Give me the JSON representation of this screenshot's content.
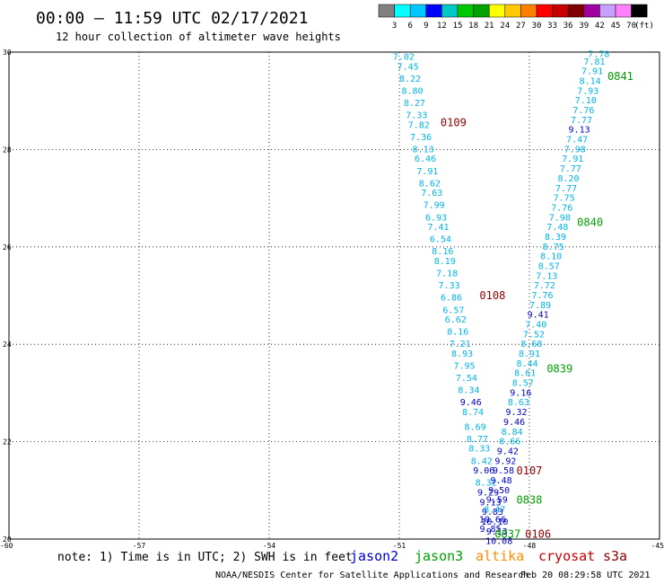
{
  "header": {
    "title": "00:00 – 11:59 UTC 02/17/2021",
    "subtitle": "12 hour collection of altimeter wave heights"
  },
  "legend_scale": {
    "labels": [
      "3",
      "6",
      "9",
      "12",
      "15",
      "18",
      "21",
      "24",
      "27",
      "30",
      "33",
      "36",
      "39",
      "42",
      "45",
      "70"
    ],
    "unit": "(ft)",
    "colors": [
      "#808080",
      "#00ffff",
      "#00c8ff",
      "#0000ff",
      "#00c8c8",
      "#00c800",
      "#00a000",
      "#ffff00",
      "#ffc800",
      "#ff8000",
      "#ff0000",
      "#c80000",
      "#800000",
      "#a000a0",
      "#c8a0ff",
      "#ff80ff",
      "#000000"
    ]
  },
  "footer": {
    "note": "note: 1) Time is in UTC; 2) SWH is in feet",
    "credit": "NOAA/NESDIS Center for Satellite Applications and Research",
    "timestamp": "Feb 20 08:29:58 UTC 2021"
  },
  "satellites": [
    {
      "name": "jason2",
      "color": "#0000c8"
    },
    {
      "name": "jason3",
      "color": "#00a000"
    },
    {
      "name": "altika",
      "color": "#ff8c00"
    },
    {
      "name": "cryosat",
      "color": "#c80000"
    },
    {
      "name": "s3a",
      "color": "#900000"
    }
  ],
  "chart_data": {
    "type": "scatter",
    "x_ticks": [
      "-60",
      "-57",
      "-54",
      "-51",
      "-48",
      "-45"
    ],
    "y_ticks": [
      "20",
      "22",
      "24",
      "26",
      "28",
      "30"
    ],
    "xlim": [
      -60,
      -45
    ],
    "ylim": [
      20,
      30
    ],
    "grid": true,
    "series": [
      {
        "name": "s3a",
        "color": "#00b4e6",
        "points": [
          {
            "lon": -50.9,
            "lat": 29.9,
            "v": "7.02"
          },
          {
            "lon": -50.8,
            "lat": 29.7,
            "v": "7.45"
          },
          {
            "lon": -50.75,
            "lat": 29.45,
            "v": "8.22"
          },
          {
            "lon": -50.7,
            "lat": 29.2,
            "v": "8.80"
          },
          {
            "lon": -50.65,
            "lat": 28.95,
            "v": "8.27"
          },
          {
            "lon": -50.6,
            "lat": 28.7,
            "v": "7.33"
          },
          {
            "lon": -50.55,
            "lat": 28.5,
            "v": "7.82"
          },
          {
            "lon": -50.5,
            "lat": 28.25,
            "v": "7.36"
          },
          {
            "lon": -50.45,
            "lat": 28.0,
            "v": "8.13"
          },
          {
            "lon": -50.4,
            "lat": 27.8,
            "v": "6.46"
          },
          {
            "lon": -50.35,
            "lat": 27.55,
            "v": "7.91"
          },
          {
            "lon": -50.3,
            "lat": 27.3,
            "v": "8.62"
          },
          {
            "lon": -50.25,
            "lat": 27.1,
            "v": "7.63"
          },
          {
            "lon": -50.2,
            "lat": 26.85,
            "v": "7.99"
          },
          {
            "lon": -50.15,
            "lat": 26.6,
            "v": "6.93"
          },
          {
            "lon": -50.1,
            "lat": 26.4,
            "v": "7.41"
          },
          {
            "lon": -50.05,
            "lat": 26.15,
            "v": "6.54"
          },
          {
            "lon": -50.0,
            "lat": 25.9,
            "v": "8.16"
          },
          {
            "lon": -49.95,
            "lat": 25.7,
            "v": "8.19"
          },
          {
            "lon": -49.9,
            "lat": 25.45,
            "v": "7.18"
          },
          {
            "lon": -49.85,
            "lat": 25.2,
            "v": "7.33"
          },
          {
            "lon": -49.8,
            "lat": 24.95,
            "v": "6.86"
          },
          {
            "lon": -49.75,
            "lat": 24.7,
            "v": "6.57"
          },
          {
            "lon": -49.7,
            "lat": 24.5,
            "v": "6.62"
          },
          {
            "lon": -49.65,
            "lat": 24.25,
            "v": "8.16"
          },
          {
            "lon": -49.6,
            "lat": 24.0,
            "v": "7.21"
          },
          {
            "lon": -49.55,
            "lat": 23.8,
            "v": "8.93"
          },
          {
            "lon": -49.5,
            "lat": 23.55,
            "v": "7.95"
          },
          {
            "lon": -49.45,
            "lat": 23.3,
            "v": "7.54"
          },
          {
            "lon": -49.4,
            "lat": 23.05,
            "v": "8.34"
          },
          {
            "lon": -49.35,
            "lat": 22.8,
            "v": "9.46"
          },
          {
            "lon": -49.3,
            "lat": 22.6,
            "v": "8.74"
          },
          {
            "lon": -49.25,
            "lat": 22.3,
            "v": "8.69"
          },
          {
            "lon": -49.2,
            "lat": 22.05,
            "v": "8.77"
          },
          {
            "lon": -49.15,
            "lat": 21.85,
            "v": "8.33"
          },
          {
            "lon": -49.1,
            "lat": 21.6,
            "v": "8.42"
          },
          {
            "lon": -49.05,
            "lat": 21.4,
            "v": "9.06"
          },
          {
            "lon": -49.0,
            "lat": 21.15,
            "v": "8.32"
          },
          {
            "lon": -48.95,
            "lat": 20.95,
            "v": "9.29"
          },
          {
            "lon": -48.9,
            "lat": 20.75,
            "v": "9.13"
          },
          {
            "lon": -48.85,
            "lat": 20.55,
            "v": "9.83"
          },
          {
            "lon": -48.8,
            "lat": 20.35,
            "v": "10.10"
          },
          {
            "lon": -48.75,
            "lat": 20.15,
            "v": "9.13"
          },
          {
            "lon": -48.7,
            "lat": 19.95,
            "v": "10.08"
          }
        ]
      },
      {
        "name": "jason3",
        "color": "#00b4e6",
        "points": [
          {
            "lon": -46.4,
            "lat": 29.95,
            "v": "7.78"
          },
          {
            "lon": -46.5,
            "lat": 29.8,
            "v": "7.81"
          },
          {
            "lon": -46.55,
            "lat": 29.6,
            "v": "7.91"
          },
          {
            "lon": -46.6,
            "lat": 29.4,
            "v": "8.14"
          },
          {
            "lon": -46.65,
            "lat": 29.2,
            "v": "7.93"
          },
          {
            "lon": -46.7,
            "lat": 29.0,
            "v": "7.10"
          },
          {
            "lon": -46.75,
            "lat": 28.8,
            "v": "7.76"
          },
          {
            "lon": -46.8,
            "lat": 28.6,
            "v": "7.77"
          },
          {
            "lon": -46.85,
            "lat": 28.4,
            "v": "9.13"
          },
          {
            "lon": -46.9,
            "lat": 28.2,
            "v": "7.47"
          },
          {
            "lon": -46.95,
            "lat": 28.0,
            "v": "7.98"
          },
          {
            "lon": -47.0,
            "lat": 27.8,
            "v": "7.91"
          },
          {
            "lon": -47.05,
            "lat": 27.6,
            "v": "7.77"
          },
          {
            "lon": -47.1,
            "lat": 27.4,
            "v": "8.20"
          },
          {
            "lon": -47.15,
            "lat": 27.2,
            "v": "7.77"
          },
          {
            "lon": -47.2,
            "lat": 27.0,
            "v": "7.75"
          },
          {
            "lon": -47.25,
            "lat": 26.8,
            "v": "7.76"
          },
          {
            "lon": -47.3,
            "lat": 26.6,
            "v": "7.98"
          },
          {
            "lon": -47.35,
            "lat": 26.4,
            "v": "7.48"
          },
          {
            "lon": -47.4,
            "lat": 26.2,
            "v": "8.39"
          },
          {
            "lon": -47.45,
            "lat": 26.0,
            "v": "8.75"
          },
          {
            "lon": -47.5,
            "lat": 25.8,
            "v": "8.10"
          },
          {
            "lon": -47.55,
            "lat": 25.6,
            "v": "8.57"
          },
          {
            "lon": -47.6,
            "lat": 25.4,
            "v": "7.13"
          },
          {
            "lon": -47.65,
            "lat": 25.2,
            "v": "7.72"
          },
          {
            "lon": -47.7,
            "lat": 25.0,
            "v": "7.76"
          },
          {
            "lon": -47.75,
            "lat": 24.8,
            "v": "7.89"
          },
          {
            "lon": -47.8,
            "lat": 24.6,
            "v": "9.41"
          },
          {
            "lon": -47.85,
            "lat": 24.4,
            "v": "7.40"
          },
          {
            "lon": -47.9,
            "lat": 24.2,
            "v": "7.52"
          },
          {
            "lon": -47.95,
            "lat": 24.0,
            "v": "8.68"
          },
          {
            "lon": -48.0,
            "lat": 23.8,
            "v": "8.91"
          },
          {
            "lon": -48.05,
            "lat": 23.6,
            "v": "8.44"
          },
          {
            "lon": -48.1,
            "lat": 23.4,
            "v": "8.61"
          },
          {
            "lon": -48.15,
            "lat": 23.2,
            "v": "8.57"
          },
          {
            "lon": -48.2,
            "lat": 23.0,
            "v": "9.16"
          },
          {
            "lon": -48.25,
            "lat": 22.8,
            "v": "8.63"
          },
          {
            "lon": -48.3,
            "lat": 22.6,
            "v": "9.32"
          },
          {
            "lon": -48.35,
            "lat": 22.4,
            "v": "9.46"
          },
          {
            "lon": -48.4,
            "lat": 22.2,
            "v": "8.84"
          },
          {
            "lon": -48.45,
            "lat": 22.0,
            "v": "8.66"
          },
          {
            "lon": -48.5,
            "lat": 21.8,
            "v": "9.42"
          },
          {
            "lon": -48.55,
            "lat": 21.6,
            "v": "9.92"
          },
          {
            "lon": -48.6,
            "lat": 21.4,
            "v": "9.58"
          },
          {
            "lon": -48.65,
            "lat": 21.2,
            "v": "9.48"
          },
          {
            "lon": -48.7,
            "lat": 21.0,
            "v": "9.50"
          },
          {
            "lon": -48.75,
            "lat": 20.8,
            "v": "9.59"
          },
          {
            "lon": -48.8,
            "lat": 20.6,
            "v": "8.47"
          },
          {
            "lon": -48.85,
            "lat": 20.4,
            "v": "10.66"
          },
          {
            "lon": -48.9,
            "lat": 20.2,
            "v": "9.85"
          }
        ]
      }
    ],
    "time_labels": [
      {
        "text": "0841",
        "color": "#00a000",
        "lon": -46.2,
        "lat": 29.5
      },
      {
        "text": "0840",
        "color": "#00a000",
        "lon": -46.9,
        "lat": 26.5
      },
      {
        "text": "0839",
        "color": "#00a000",
        "lon": -47.6,
        "lat": 23.5
      },
      {
        "text": "0838",
        "color": "#00a000",
        "lon": -48.3,
        "lat": 20.8
      },
      {
        "text": "0837",
        "color": "#00a000",
        "lon": -48.8,
        "lat": 20.1
      },
      {
        "text": "0109",
        "color": "#900000",
        "lon": -50.05,
        "lat": 28.55
      },
      {
        "text": "0108",
        "color": "#900000",
        "lon": -49.15,
        "lat": 25.0
      },
      {
        "text": "0107",
        "color": "#900000",
        "lon": -48.3,
        "lat": 21.4
      },
      {
        "text": "0106",
        "color": "#900000",
        "lon": -48.1,
        "lat": 20.1
      }
    ]
  }
}
